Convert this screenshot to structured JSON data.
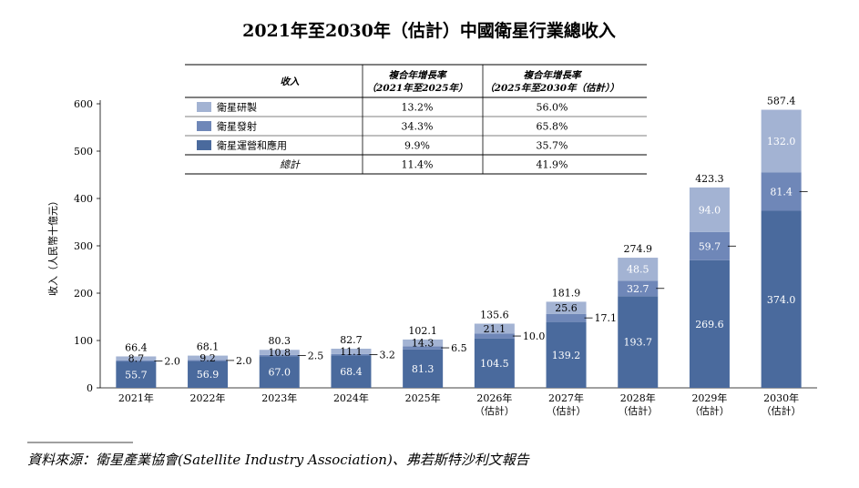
{
  "chart_data": {
    "type": "bar",
    "stacked": true,
    "title": "2021年至2030年（估計）中國衛星行業總收入",
    "ylabel": "收入（人民幣十億元）",
    "xlabel": "",
    "ylim": [
      0,
      600
    ],
    "yticks": [
      "0",
      "100",
      "200",
      "300",
      "400",
      "500",
      "600"
    ],
    "categories": [
      {
        "year": "2021年",
        "note": ""
      },
      {
        "year": "2022年",
        "note": ""
      },
      {
        "year": "2023年",
        "note": ""
      },
      {
        "year": "2024年",
        "note": ""
      },
      {
        "year": "2025年",
        "note": ""
      },
      {
        "year": "2026年",
        "note": "（估計）"
      },
      {
        "year": "2027年",
        "note": "（估計）"
      },
      {
        "year": "2028年",
        "note": "（估計）"
      },
      {
        "year": "2029年",
        "note": "（估計）"
      },
      {
        "year": "2030年",
        "note": "（估計）"
      }
    ],
    "series": [
      {
        "name": "衛星運營和應用",
        "color": "#4a6a9d",
        "values": [
          55.7,
          56.9,
          67.0,
          68.4,
          81.3,
          104.5,
          139.2,
          193.7,
          269.6,
          374.0
        ],
        "labels": [
          "55.7",
          "56.9",
          "67.0",
          "68.4",
          "81.3",
          "104.5",
          "139.2",
          "193.7",
          "269.6",
          "374.0"
        ]
      },
      {
        "name": "衛星發射",
        "color": "#6f87b8",
        "values": [
          2.0,
          2.0,
          2.5,
          3.2,
          6.5,
          10.0,
          17.1,
          32.7,
          59.7,
          81.4
        ],
        "labels": [
          "2.0",
          "2.0",
          "2.5",
          "3.2",
          "6.5",
          "10.0",
          "17.1",
          "32.7",
          "59.7",
          "81.4"
        ]
      },
      {
        "name": "衛星研製",
        "color": "#a3b3d3",
        "values": [
          8.7,
          9.2,
          10.8,
          11.1,
          14.3,
          21.1,
          25.6,
          48.5,
          94.0,
          132.0
        ],
        "labels": [
          "8.7",
          "9.2",
          "10.8",
          "11.1",
          "14.3",
          "21.1",
          "25.6",
          "48.5",
          "94.0",
          "132.0"
        ]
      }
    ],
    "totals": [
      66.4,
      68.1,
      80.3,
      82.7,
      102.1,
      135.6,
      181.9,
      274.9,
      423.3,
      587.4
    ],
    "total_labels": [
      "66.4",
      "68.1",
      "80.3",
      "82.7",
      "102.1",
      "135.6",
      "181.9",
      "274.9",
      "423.3",
      "587.4"
    ],
    "cagr_table": {
      "headers": [
        "收入",
        "複合年增長率（2021年至2025年）",
        "複合年增長率（2025年至2030年（估計））"
      ],
      "header_line1": [
        "收入",
        "複合年增長率",
        "複合年增長率"
      ],
      "header_line2": [
        "",
        "（2021年至2025年）",
        "（2025年至2030年（估計））"
      ],
      "rows": [
        {
          "label": "衛星研製",
          "color": "#a3b3d3",
          "cagr1": "13.2%",
          "cagr2": "56.0%"
        },
        {
          "label": "衛星發射",
          "color": "#6f87b8",
          "cagr1": "34.3%",
          "cagr2": "65.8%"
        },
        {
          "label": "衛星運營和應用",
          "color": "#4a6a9d",
          "cagr1": "9.9%",
          "cagr2": "35.7%"
        },
        {
          "label": "總計",
          "color": "",
          "cagr1": "11.4%",
          "cagr2": "41.9%"
        }
      ]
    }
  },
  "source": "資料來源：衛星產業協會(Satellite Industry Association)、弗若斯特沙利文報告"
}
